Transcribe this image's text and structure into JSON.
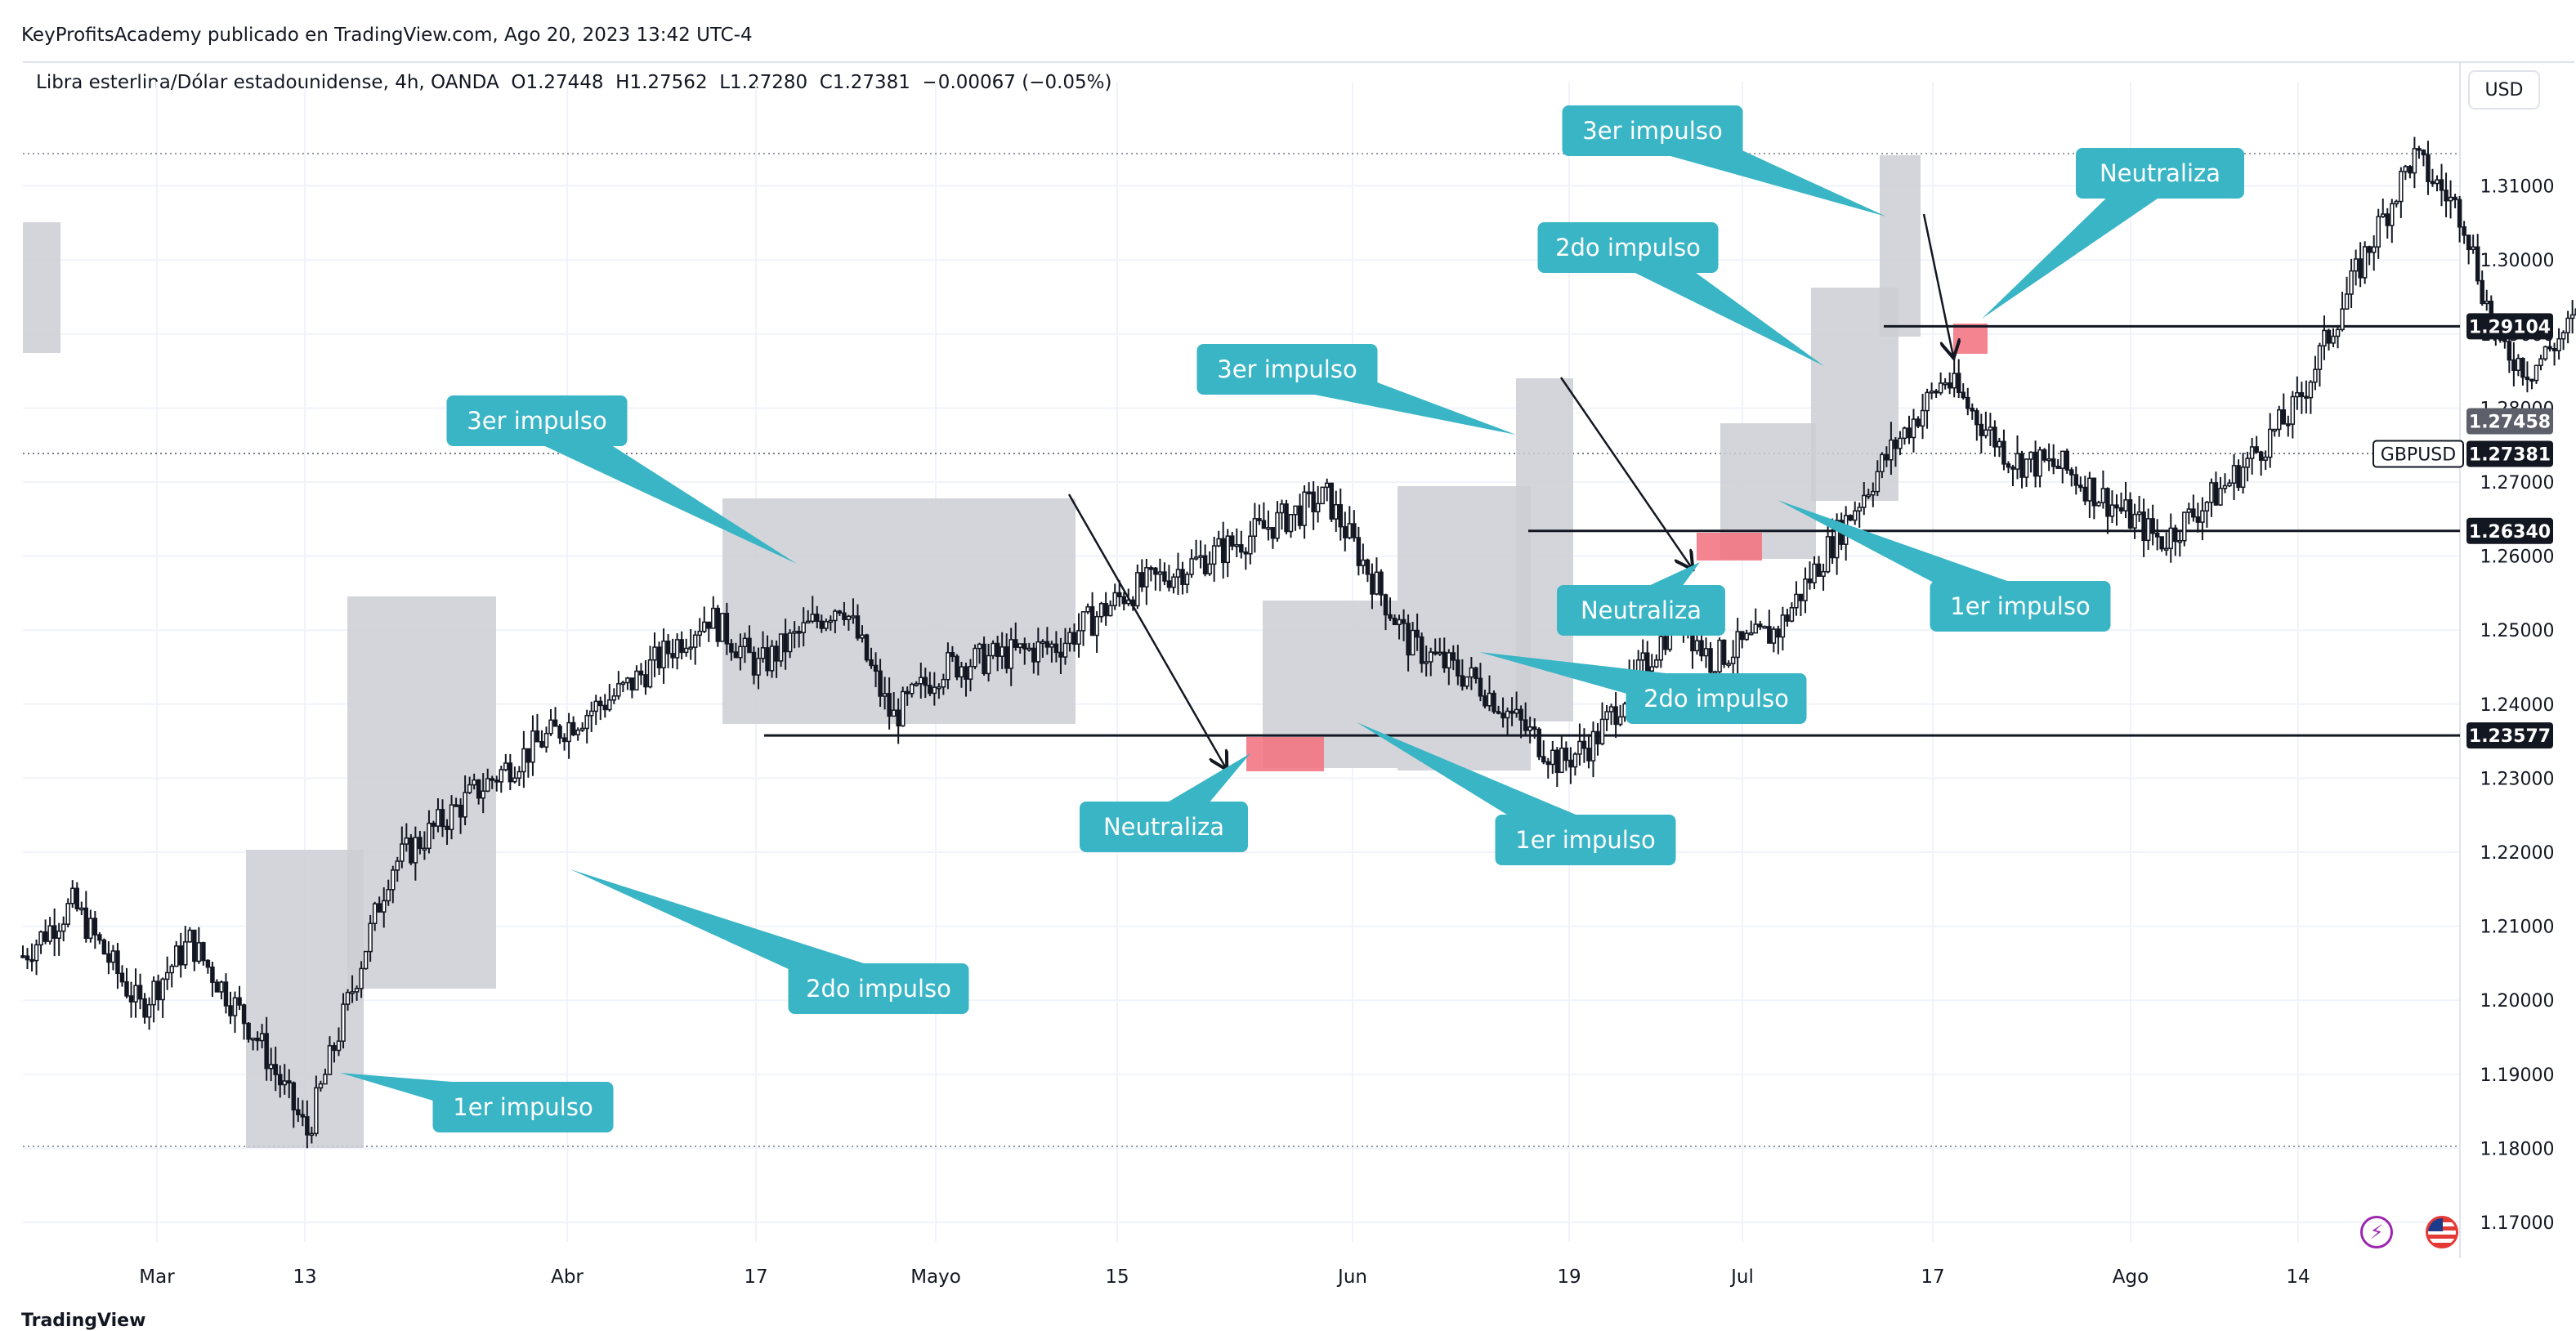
{
  "header": {
    "published": "KeyProfitsAcademy publicado en TradingView.com, Ago 20, 2023 13:42 UTC-4",
    "symbol_line": "Libra esterlina/Dólar estadounidense, 4h, OANDA  O1.27448  H1.27562  L1.27280  C1.27381  −0.00067 (−0.05%)"
  },
  "currency_button": "USD",
  "footer_logo": "TradingView",
  "icons": {
    "bolt": "lightning-icon",
    "flag": "us-flag-icon"
  },
  "colors": {
    "callout": "#3ab5c6",
    "box": "#cdced4",
    "neutral_zone": "#f2707c",
    "candle": "#131722",
    "grid": "#f0f3fa"
  },
  "chart_data": {
    "type": "line",
    "series": [
      {
        "x": [
          "Feb 21",
          "Feb 24",
          "Feb 28",
          "Mar 3",
          "Mar 7",
          "Mar 10",
          "Mar 15",
          "Mar 20",
          "Mar 24",
          "Mar 29",
          "Apr 3",
          "Apr 6",
          "Apr 11",
          "Apr 14",
          "Apr 17",
          "Apr 24",
          "Apr 28",
          "May 3",
          "May 10",
          "May 15",
          "May 19",
          "May 24",
          "May 26",
          "May 31",
          "Jun 2",
          "Jun 6",
          "Jun 9",
          "Jun 13",
          "Jun 16",
          "Jun 20",
          "Jun 23",
          "Jun 29",
          "Jul 3",
          "Jul 7",
          "Jul 11",
          "Jul 14",
          "Jul 17",
          "Jul 19",
          "Jul 21",
          "Jul 25",
          "Jul 27",
          "Jul 31",
          "Aug 3",
          "Aug 7",
          "Aug 10",
          "Aug 14",
          "Aug 16",
          "Aug 18"
        ],
        "values": [
          1.206,
          1.213,
          1.199,
          1.208,
          1.195,
          1.182,
          1.218,
          1.228,
          1.235,
          1.242,
          1.252,
          1.245,
          1.254,
          1.238,
          1.245,
          1.248,
          1.255,
          1.26,
          1.268,
          1.248,
          1.243,
          1.232,
          1.235,
          1.252,
          1.246,
          1.25,
          1.261,
          1.275,
          1.284,
          1.273,
          1.272,
          1.262,
          1.27,
          1.28,
          1.3,
          1.314,
          1.306,
          1.289,
          1.285,
          1.295,
          1.281,
          1.281,
          1.263,
          1.272,
          1.27,
          1.264,
          1.274,
          1.2738
        ]
      }
    ],
    "x_tick_labels": [
      "Mar",
      "13",
      "Abr",
      "17",
      "Mayo",
      "15",
      "Jun",
      "19",
      "Jul",
      "17",
      "Ago",
      "14"
    ],
    "y_tick_labels": [
      "1.17000",
      "1.18000",
      "1.19000",
      "1.20000",
      "1.21000",
      "1.22000",
      "1.23000",
      "1.24000",
      "1.25000",
      "1.26000",
      "1.27000",
      "1.28000",
      "1.29000",
      "1.30000",
      "1.31000"
    ],
    "ylim": [
      1.165,
      1.321
    ],
    "horizontal_levels": [
      {
        "value": 1.29104,
        "label": "1.29104"
      },
      {
        "value": 1.2634,
        "label": "1.26340"
      },
      {
        "value": 1.23577,
        "label": "1.23577"
      }
    ],
    "price_tags": [
      {
        "label": "1.27458",
        "value": 1.27458,
        "style": "grey"
      },
      {
        "label": "GBPUSD",
        "value": 1.27381,
        "style": "white"
      },
      {
        "label": "1.27381",
        "value": 1.27381,
        "style": "black"
      }
    ],
    "annotations": [
      "1er impulso",
      "2do impulso",
      "3er impulso",
      "Neutraliza",
      "1er impulso",
      "2do impulso",
      "3er impulso",
      "Neutraliza",
      "1er impulso",
      "2do impulso",
      "3er impulso",
      "Neutraliza"
    ]
  }
}
